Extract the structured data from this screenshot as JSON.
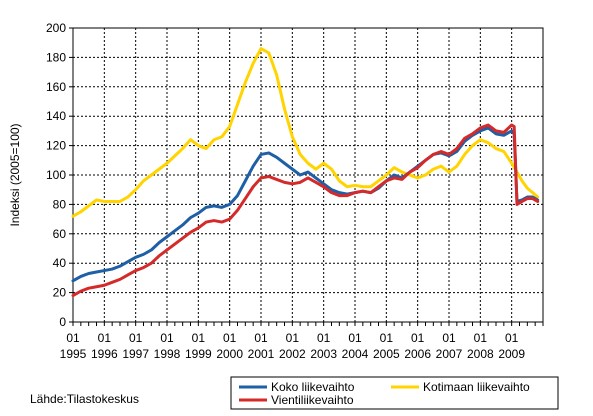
{
  "chart_data": {
    "type": "line",
    "ylabel": "Indeksi (2005=100)",
    "ylim": [
      0,
      200
    ],
    "yticks": [
      0,
      20,
      40,
      60,
      80,
      100,
      120,
      140,
      160,
      180,
      200
    ],
    "xlim": [
      1995.0,
      2010.0
    ],
    "x_tick_labels": [
      {
        "year": 1995,
        "month": "01",
        "label": "1995"
      },
      {
        "year": 1996,
        "month": "01",
        "label": "1996"
      },
      {
        "year": 1997,
        "month": "01",
        "label": "1997"
      },
      {
        "year": 1998,
        "month": "01",
        "label": "1998"
      },
      {
        "year": 1999,
        "month": "01",
        "label": "1999"
      },
      {
        "year": 2000,
        "month": "01",
        "label": "2000"
      },
      {
        "year": 2001,
        "month": "01",
        "label": "2001"
      },
      {
        "year": 2002,
        "month": "01",
        "label": "2002"
      },
      {
        "year": 2003,
        "month": "01",
        "label": "2003"
      },
      {
        "year": 2004,
        "month": "01",
        "label": "2004"
      },
      {
        "year": 2005,
        "month": "01",
        "label": "2005"
      },
      {
        "year": 2006,
        "month": "01",
        "label": "2006"
      },
      {
        "year": 2007,
        "month": "01",
        "label": "2007"
      },
      {
        "year": 2008,
        "month": "01",
        "label": "2008"
      },
      {
        "year": 2009,
        "month": "01",
        "label": "2009"
      }
    ],
    "grid": true,
    "legend_position": "bottom",
    "series": [
      {
        "name": "Koko liikevaihto",
        "color": "#1f5fa6",
        "points": [
          [
            1995.0,
            28
          ],
          [
            1995.25,
            31
          ],
          [
            1995.5,
            33
          ],
          [
            1995.75,
            34
          ],
          [
            1996.0,
            35
          ],
          [
            1996.25,
            36
          ],
          [
            1996.5,
            38
          ],
          [
            1996.75,
            41
          ],
          [
            1997.0,
            44
          ],
          [
            1997.25,
            46
          ],
          [
            1997.5,
            49
          ],
          [
            1997.75,
            54
          ],
          [
            1998.0,
            58
          ],
          [
            1998.25,
            62
          ],
          [
            1998.5,
            66
          ],
          [
            1998.75,
            71
          ],
          [
            1999.0,
            74
          ],
          [
            1999.25,
            78
          ],
          [
            1999.5,
            79
          ],
          [
            1999.75,
            78
          ],
          [
            2000.0,
            80
          ],
          [
            2000.25,
            86
          ],
          [
            2000.5,
            96
          ],
          [
            2000.75,
            106
          ],
          [
            2001.0,
            114
          ],
          [
            2001.25,
            115
          ],
          [
            2001.5,
            112
          ],
          [
            2001.75,
            108
          ],
          [
            2002.0,
            104
          ],
          [
            2002.25,
            100
          ],
          [
            2002.5,
            102
          ],
          [
            2002.75,
            98
          ],
          [
            2003.0,
            94
          ],
          [
            2003.25,
            90
          ],
          [
            2003.5,
            88
          ],
          [
            2003.75,
            87
          ],
          [
            2004.0,
            88
          ],
          [
            2004.25,
            89
          ],
          [
            2004.5,
            88
          ],
          [
            2004.75,
            91
          ],
          [
            2005.0,
            96
          ],
          [
            2005.25,
            100
          ],
          [
            2005.5,
            98
          ],
          [
            2005.75,
            102
          ],
          [
            2006.0,
            106
          ],
          [
            2006.25,
            110
          ],
          [
            2006.5,
            114
          ],
          [
            2006.75,
            115
          ],
          [
            2007.0,
            113
          ],
          [
            2007.25,
            116
          ],
          [
            2007.5,
            123
          ],
          [
            2007.75,
            127
          ],
          [
            2008.0,
            130
          ],
          [
            2008.25,
            132
          ],
          [
            2008.5,
            128
          ],
          [
            2008.75,
            127
          ],
          [
            2009.0,
            130
          ],
          [
            2009.08,
            128
          ],
          [
            2009.17,
            82
          ],
          [
            2009.33,
            83
          ],
          [
            2009.5,
            85
          ],
          [
            2009.67,
            85
          ],
          [
            2009.83,
            83
          ]
        ]
      },
      {
        "name": "Vientiliikevaihto",
        "color": "#d42a2a",
        "points": [
          [
            1995.0,
            18
          ],
          [
            1995.25,
            21
          ],
          [
            1995.5,
            23
          ],
          [
            1995.75,
            24
          ],
          [
            1996.0,
            25
          ],
          [
            1996.25,
            27
          ],
          [
            1996.5,
            29
          ],
          [
            1996.75,
            32
          ],
          [
            1997.0,
            35
          ],
          [
            1997.25,
            37
          ],
          [
            1997.5,
            40
          ],
          [
            1997.75,
            45
          ],
          [
            1998.0,
            49
          ],
          [
            1998.25,
            53
          ],
          [
            1998.5,
            57
          ],
          [
            1998.75,
            61
          ],
          [
            1999.0,
            64
          ],
          [
            1999.25,
            68
          ],
          [
            1999.5,
            69
          ],
          [
            1999.75,
            68
          ],
          [
            2000.0,
            70
          ],
          [
            2000.25,
            76
          ],
          [
            2000.5,
            84
          ],
          [
            2000.75,
            92
          ],
          [
            2001.0,
            98
          ],
          [
            2001.25,
            99
          ],
          [
            2001.5,
            97
          ],
          [
            2001.75,
            95
          ],
          [
            2002.0,
            94
          ],
          [
            2002.25,
            95
          ],
          [
            2002.5,
            98
          ],
          [
            2002.75,
            95
          ],
          [
            2003.0,
            92
          ],
          [
            2003.25,
            88
          ],
          [
            2003.5,
            86
          ],
          [
            2003.75,
            86
          ],
          [
            2004.0,
            88
          ],
          [
            2004.25,
            89
          ],
          [
            2004.5,
            88
          ],
          [
            2004.75,
            92
          ],
          [
            2005.0,
            96
          ],
          [
            2005.25,
            98
          ],
          [
            2005.5,
            97
          ],
          [
            2005.75,
            102
          ],
          [
            2006.0,
            105
          ],
          [
            2006.25,
            110
          ],
          [
            2006.5,
            114
          ],
          [
            2006.75,
            116
          ],
          [
            2007.0,
            114
          ],
          [
            2007.25,
            118
          ],
          [
            2007.5,
            125
          ],
          [
            2007.75,
            128
          ],
          [
            2008.0,
            132
          ],
          [
            2008.25,
            134
          ],
          [
            2008.5,
            130
          ],
          [
            2008.75,
            129
          ],
          [
            2009.0,
            134
          ],
          [
            2009.08,
            133
          ],
          [
            2009.17,
            80
          ],
          [
            2009.33,
            82
          ],
          [
            2009.5,
            84
          ],
          [
            2009.67,
            84
          ],
          [
            2009.83,
            82
          ]
        ]
      },
      {
        "name": "Kotimaan liikevaihto",
        "color": "#ffd400",
        "points": [
          [
            1995.0,
            72
          ],
          [
            1995.25,
            75
          ],
          [
            1995.5,
            79
          ],
          [
            1995.75,
            83
          ],
          [
            1996.0,
            82
          ],
          [
            1996.25,
            82
          ],
          [
            1996.5,
            82
          ],
          [
            1996.75,
            85
          ],
          [
            1997.0,
            90
          ],
          [
            1997.25,
            96
          ],
          [
            1997.5,
            100
          ],
          [
            1997.75,
            104
          ],
          [
            1998.0,
            108
          ],
          [
            1998.25,
            113
          ],
          [
            1998.5,
            118
          ],
          [
            1998.75,
            124
          ],
          [
            1999.0,
            120
          ],
          [
            1999.25,
            118
          ],
          [
            1999.5,
            124
          ],
          [
            1999.75,
            126
          ],
          [
            2000.0,
            133
          ],
          [
            2000.25,
            148
          ],
          [
            2000.5,
            163
          ],
          [
            2000.75,
            176
          ],
          [
            2001.0,
            186
          ],
          [
            2001.25,
            183
          ],
          [
            2001.5,
            168
          ],
          [
            2001.75,
            145
          ],
          [
            2002.0,
            126
          ],
          [
            2002.25,
            114
          ],
          [
            2002.5,
            108
          ],
          [
            2002.75,
            104
          ],
          [
            2003.0,
            108
          ],
          [
            2003.25,
            104
          ],
          [
            2003.5,
            96
          ],
          [
            2003.75,
            92
          ],
          [
            2004.0,
            93
          ],
          [
            2004.25,
            92
          ],
          [
            2004.5,
            92
          ],
          [
            2004.75,
            96
          ],
          [
            2005.0,
            100
          ],
          [
            2005.25,
            105
          ],
          [
            2005.5,
            102
          ],
          [
            2005.75,
            100
          ],
          [
            2006.0,
            98
          ],
          [
            2006.25,
            100
          ],
          [
            2006.5,
            104
          ],
          [
            2006.75,
            106
          ],
          [
            2007.0,
            102
          ],
          [
            2007.25,
            106
          ],
          [
            2007.5,
            114
          ],
          [
            2007.75,
            120
          ],
          [
            2008.0,
            124
          ],
          [
            2008.25,
            122
          ],
          [
            2008.5,
            118
          ],
          [
            2008.75,
            116
          ],
          [
            2009.0,
            108
          ],
          [
            2009.17,
            102
          ],
          [
            2009.33,
            96
          ],
          [
            2009.5,
            91
          ],
          [
            2009.67,
            88
          ],
          [
            2009.83,
            85
          ]
        ]
      }
    ]
  },
  "source": "Lähde:Tilastokeskus"
}
